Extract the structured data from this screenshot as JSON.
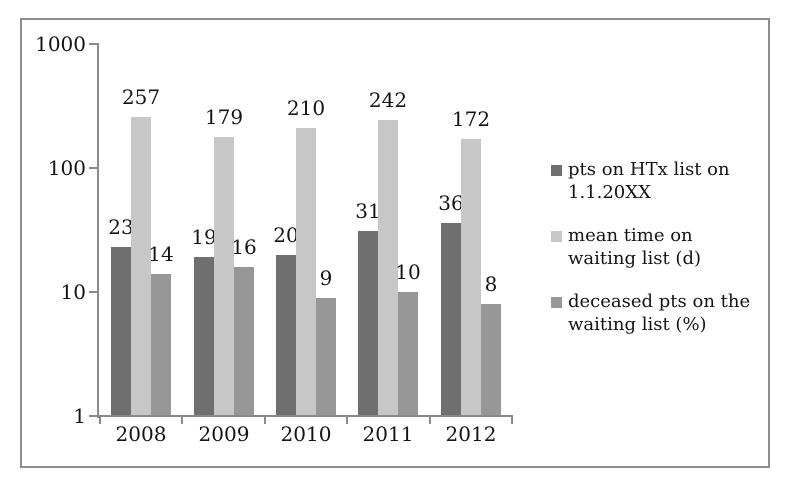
{
  "chart_data": {
    "type": "bar",
    "title": "",
    "xlabel": "",
    "ylabel": "",
    "y_scale": "log",
    "y_axis": {
      "min": 1,
      "max": 1000,
      "tick_labels": [
        "1000",
        "100",
        "10",
        "1"
      ]
    },
    "grid": false,
    "data_labels": true,
    "legend_position": "right",
    "categories": [
      "2008",
      "2009",
      "2010",
      "2011",
      "2012"
    ],
    "series": [
      {
        "name": "pts on HTx list on 1.1.20XX",
        "legend_lines": [
          "pts on HTx list on",
          "1.1.20XX"
        ],
        "color": "#6f6f6f",
        "values": [
          23,
          19,
          20,
          31,
          36
        ]
      },
      {
        "name": "mean time on waiting list (d)",
        "legend_lines": [
          "mean time on",
          "waiting list (d)"
        ],
        "color": "#c7c7c7",
        "values": [
          257,
          179,
          210,
          242,
          172
        ]
      },
      {
        "name": "deceased pts on the waiting list (%)",
        "legend_lines": [
          "deceased pts on the",
          "waiting list (%)"
        ],
        "color": "#979797",
        "values": [
          14,
          16,
          9,
          10,
          8
        ]
      }
    ],
    "colors": {
      "axis": "#8a8a8a",
      "frame_border": "#8d8d8d",
      "text": "#141414",
      "background": "#ffffff"
    }
  }
}
